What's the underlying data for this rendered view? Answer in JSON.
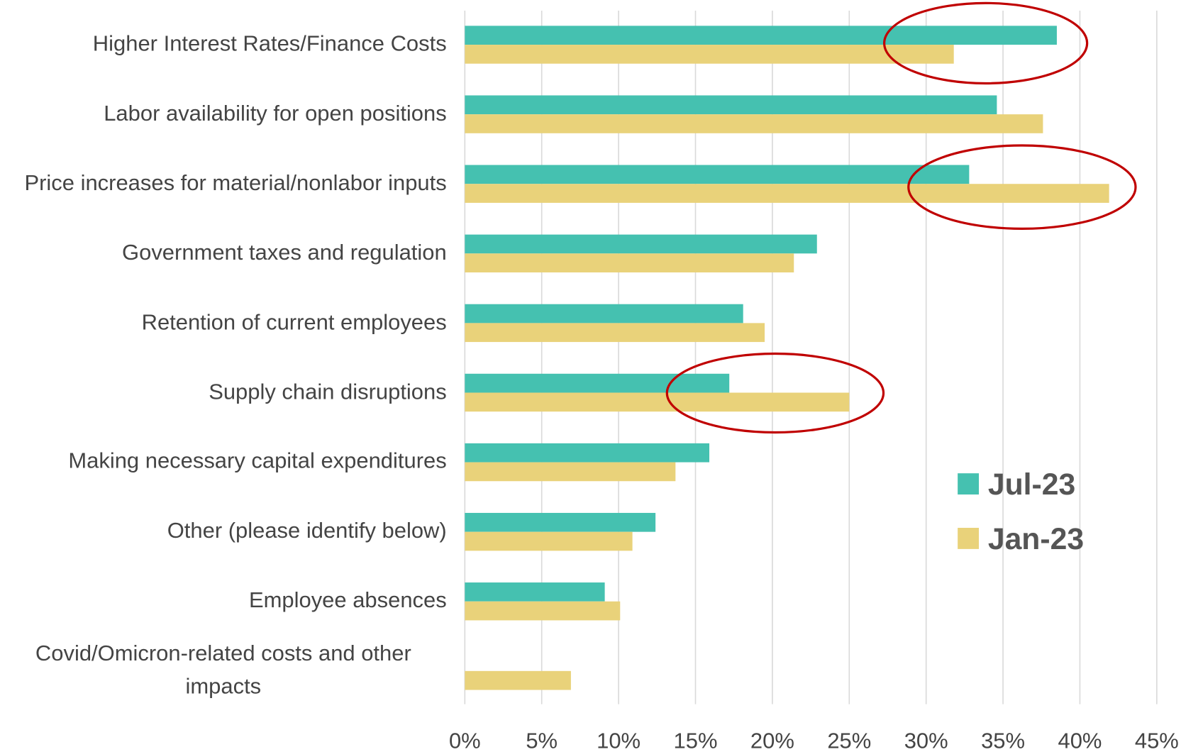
{
  "chart_data": {
    "type": "barh",
    "categories": [
      "Higher Interest Rates/Finance Costs",
      "Labor availability for open positions",
      "Price increases for material/nonlabor inputs",
      "Government taxes and regulation",
      "Retention of current employees",
      "Supply chain disruptions",
      "Making necessary capital expenditures",
      "Other (please identify below)",
      "Employee absences",
      "Covid/Omicron-related costs and other impacts"
    ],
    "series": [
      {
        "name": "Jul-23",
        "color": "#45c1b0",
        "values": [
          38.5,
          34.6,
          32.8,
          22.9,
          18.1,
          17.2,
          15.9,
          12.4,
          9.1,
          null
        ]
      },
      {
        "name": "Jan-23",
        "color": "#e9d27a",
        "values": [
          31.8,
          37.6,
          41.9,
          21.4,
          19.5,
          25.0,
          13.7,
          10.9,
          10.1,
          6.9
        ]
      }
    ],
    "xlim": [
      0,
      45
    ],
    "xticks": [
      {
        "value": 0,
        "label": "0%"
      },
      {
        "value": 5,
        "label": "5%"
      },
      {
        "value": 10,
        "label": "10%"
      },
      {
        "value": 15,
        "label": "15%"
      },
      {
        "value": 20,
        "label": "20%"
      },
      {
        "value": 25,
        "label": "25%"
      },
      {
        "value": 30,
        "label": "30%"
      },
      {
        "value": 35,
        "label": "35%"
      },
      {
        "value": 40,
        "label": "40%"
      },
      {
        "value": 45,
        "label": "45%"
      }
    ],
    "grid": true
  }
}
